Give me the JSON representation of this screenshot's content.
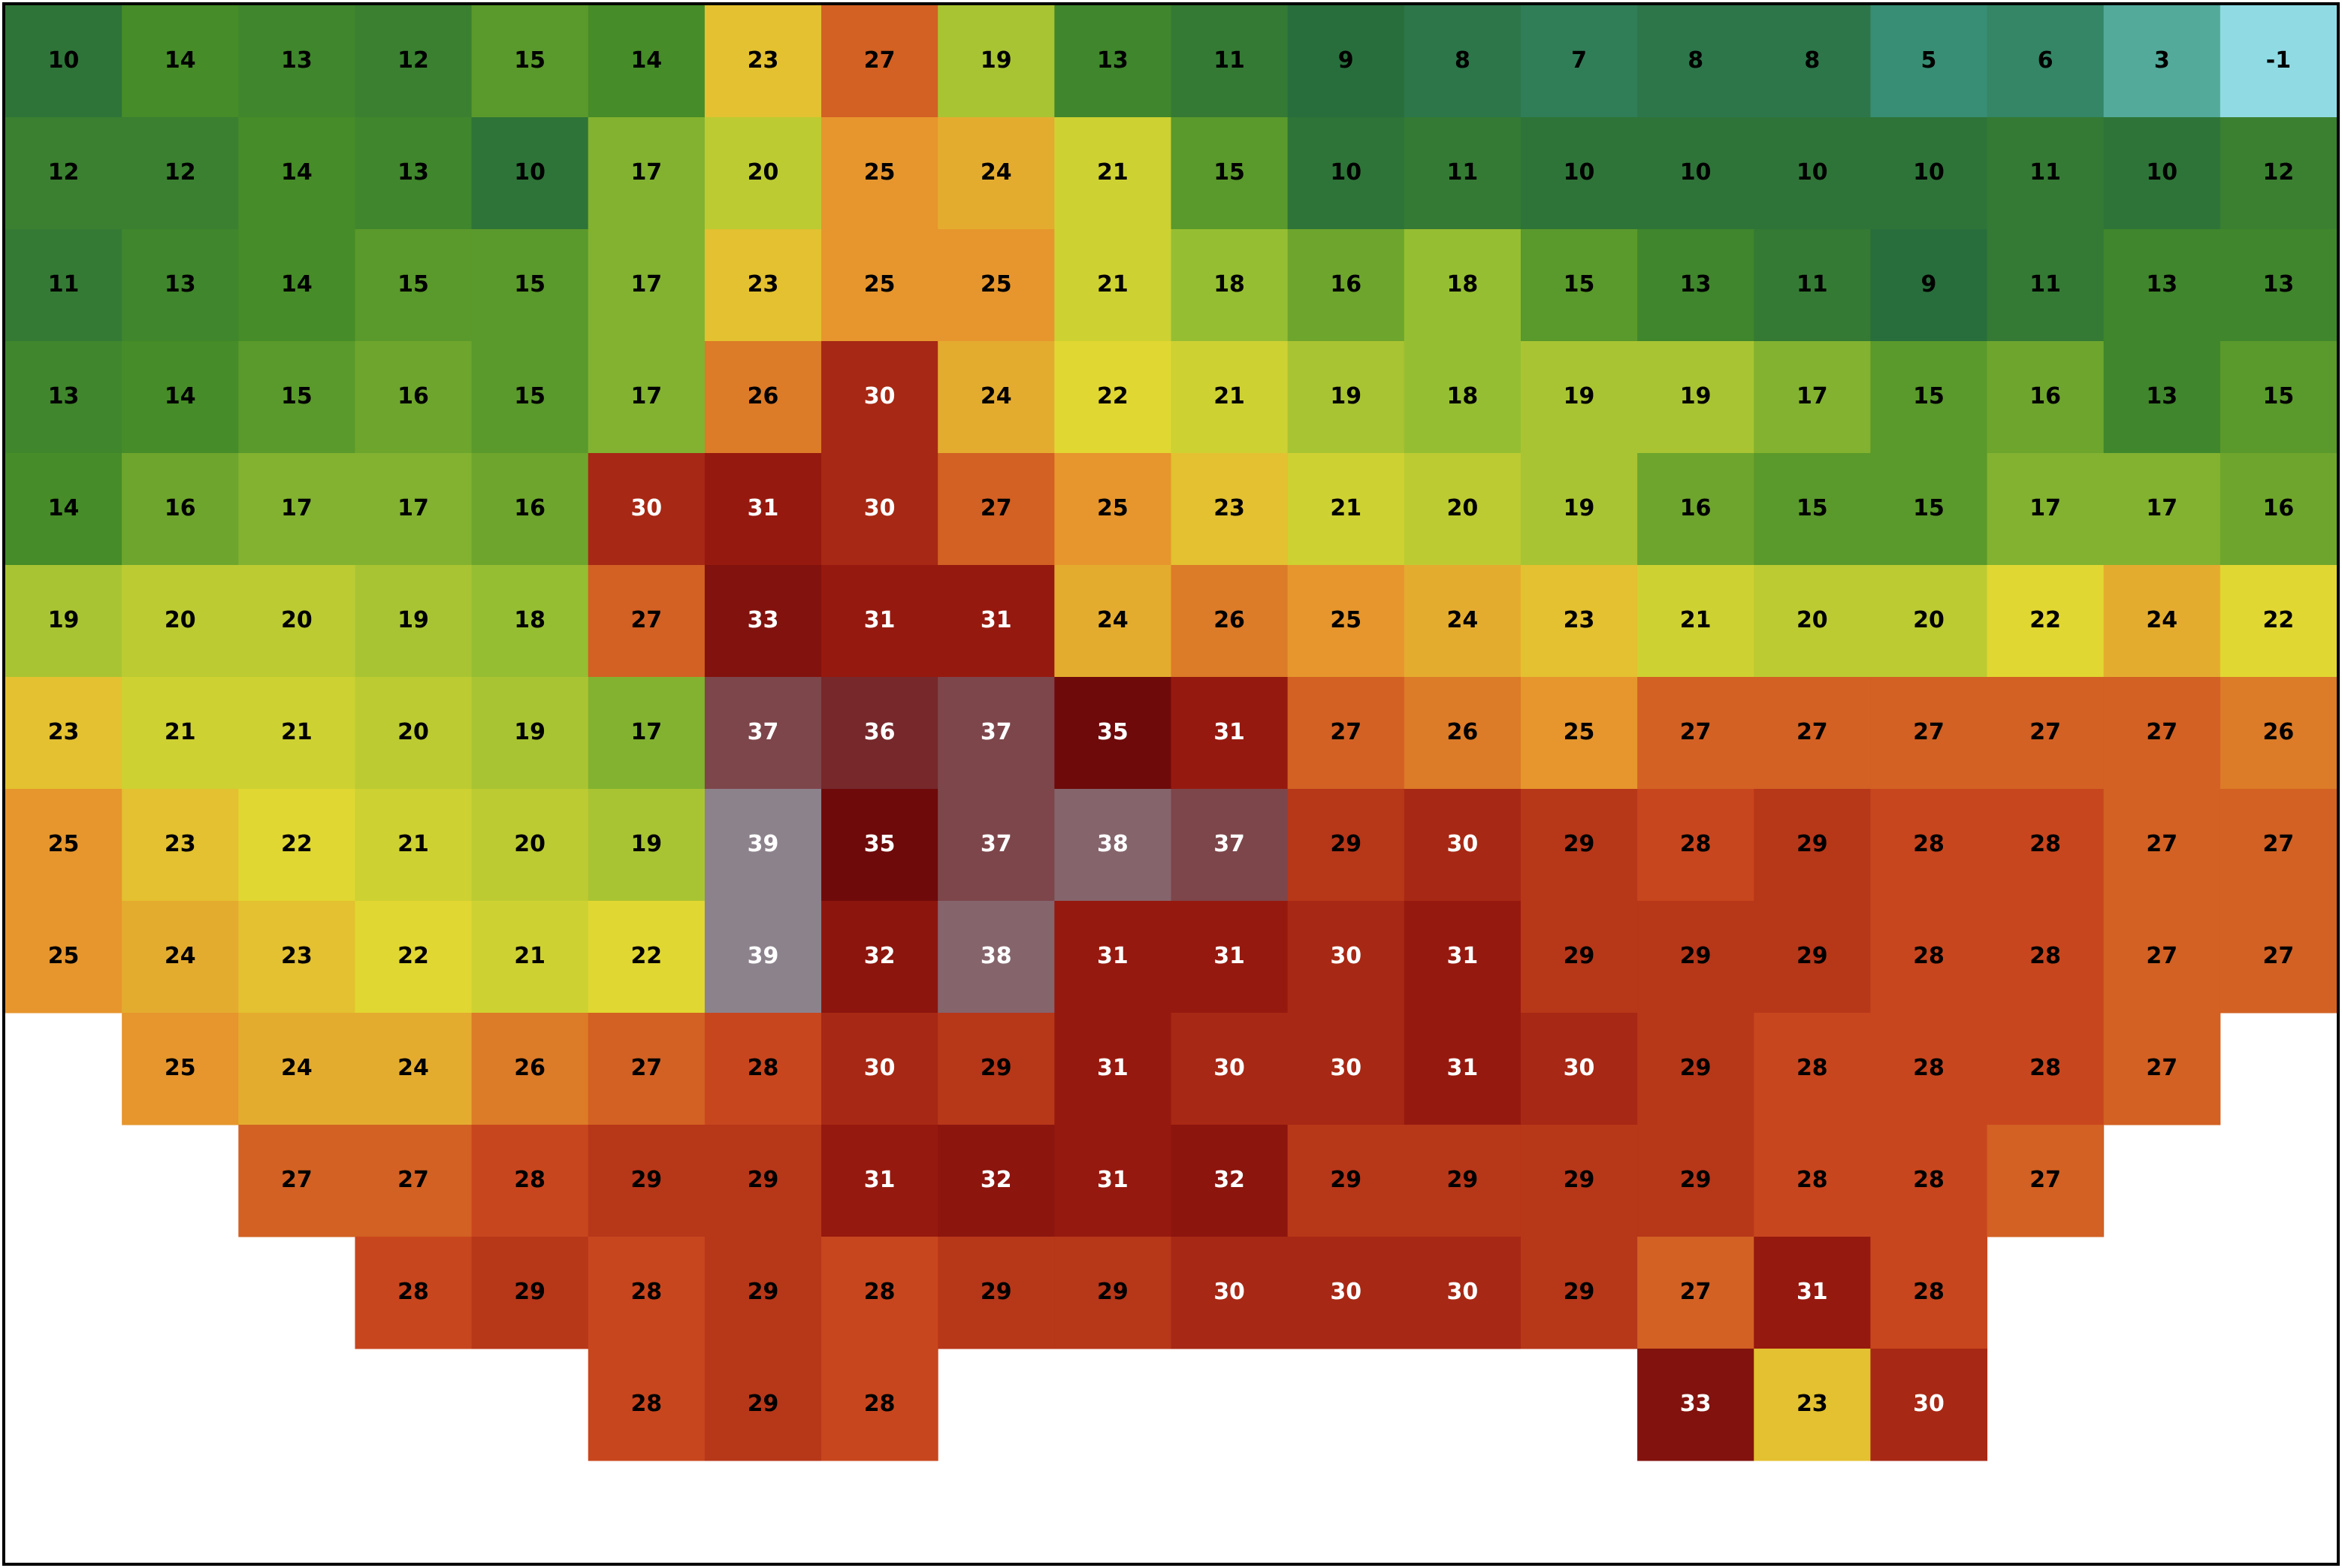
{
  "map": {
    "rows": [
      [
        10,
        14,
        13,
        12,
        15,
        14,
        23,
        27,
        19,
        13,
        11,
        9,
        8,
        7,
        8,
        8,
        5,
        6,
        3,
        -1
      ],
      [
        12,
        12,
        14,
        13,
        10,
        17,
        20,
        25,
        24,
        21,
        15,
        10,
        11,
        10,
        10,
        10,
        10,
        11,
        10,
        12
      ],
      [
        11,
        13,
        14,
        15,
        15,
        17,
        23,
        25,
        25,
        21,
        18,
        16,
        18,
        15,
        13,
        11,
        9,
        11,
        13,
        13
      ],
      [
        13,
        14,
        15,
        16,
        15,
        17,
        26,
        30,
        24,
        22,
        21,
        19,
        18,
        19,
        19,
        17,
        15,
        16,
        13,
        15
      ],
      [
        14,
        16,
        17,
        17,
        16,
        30,
        31,
        30,
        27,
        25,
        23,
        21,
        20,
        19,
        16,
        15,
        15,
        17,
        17,
        16
      ],
      [
        19,
        20,
        20,
        19,
        18,
        27,
        33,
        31,
        31,
        24,
        26,
        25,
        24,
        23,
        21,
        20,
        20,
        22,
        24,
        22
      ],
      [
        23,
        21,
        21,
        20,
        19,
        17,
        37,
        36,
        37,
        35,
        31,
        27,
        26,
        25,
        27,
        27,
        27,
        27,
        27,
        26
      ],
      [
        25,
        23,
        22,
        21,
        20,
        19,
        39,
        35,
        37,
        38,
        37,
        29,
        30,
        29,
        28,
        29,
        28,
        28,
        27,
        27
      ],
      [
        25,
        24,
        23,
        22,
        21,
        22,
        39,
        32,
        38,
        31,
        31,
        30,
        31,
        29,
        29,
        29,
        28,
        28,
        27,
        27
      ],
      [
        null,
        25,
        24,
        24,
        26,
        27,
        28,
        30,
        29,
        31,
        30,
        30,
        31,
        30,
        29,
        28,
        28,
        28,
        27,
        null
      ],
      [
        null,
        null,
        27,
        27,
        28,
        29,
        29,
        31,
        32,
        31,
        32,
        29,
        29,
        29,
        29,
        28,
        28,
        27,
        null,
        null
      ],
      [
        null,
        null,
        null,
        28,
        29,
        28,
        29,
        28,
        29,
        29,
        30,
        30,
        30,
        29,
        27,
        31,
        28,
        null,
        null,
        null
      ],
      [
        null,
        null,
        null,
        null,
        null,
        28,
        29,
        28,
        null,
        null,
        null,
        null,
        null,
        null,
        33,
        23,
        30,
        null,
        null,
        null
      ]
    ]
  }
}
